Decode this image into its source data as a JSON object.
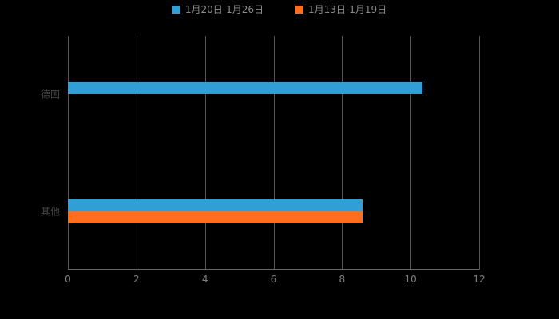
{
  "background_color": "#000000",
  "chart_data": {
    "type": "bar",
    "orientation": "horizontal",
    "title": "",
    "xlabel": "",
    "ylabel": "",
    "categories": [
      "德国",
      "其他"
    ],
    "series": [
      {
        "name": "1月20日-1月26日",
        "color": "#2F9FD6",
        "values": [
          10.35,
          8.6
        ]
      },
      {
        "name": "1月13日-1月19日",
        "color": "#FF6D1E",
        "values": [
          0,
          8.6
        ]
      }
    ],
    "xlim": [
      0,
      12
    ],
    "xticks": [
      0,
      2,
      4,
      6,
      8,
      10,
      12
    ],
    "grid": true,
    "legend_position": "top",
    "grid_color": "#555555",
    "axis_color": "#666666",
    "tick_label_color": "#808080",
    "category_label_color": "#444444",
    "legend_label_color": "#8c8c8c"
  }
}
